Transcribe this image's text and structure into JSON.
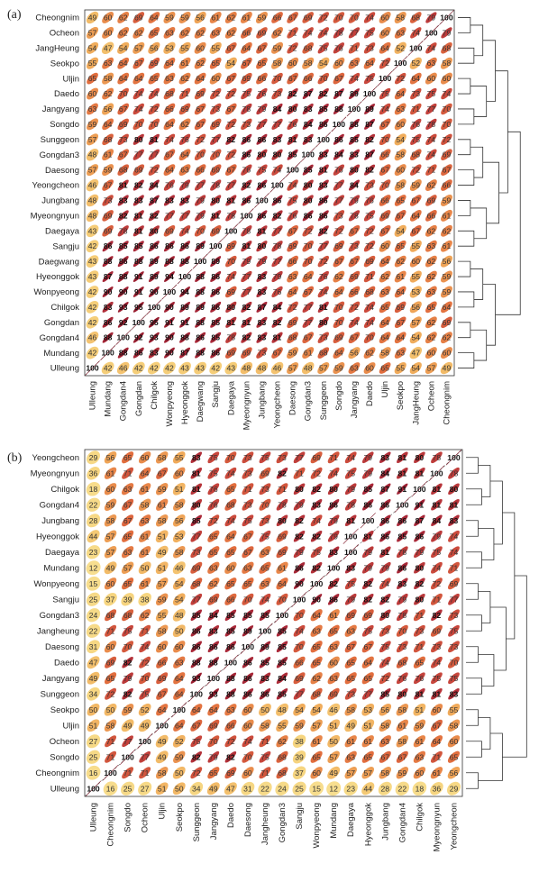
{
  "chart_data": [
    {
      "type": "heatmap",
      "panel_label": "(a)",
      "rows_top_to_bottom": [
        "Cheongnim",
        "Ocheon",
        "JangHeung",
        "Seokpo",
        "Uljin",
        "Daedo",
        "Jangyang",
        "Songdo",
        "Sunggeon",
        "Gongdan3",
        "Daesong",
        "Yeongcheon",
        "Jungbang",
        "Myeongnyun",
        "Daegaya",
        "Sangju",
        "Daegwang",
        "Hyeonggok",
        "Wonpyeong",
        "Chilgok",
        "Gongdan",
        "Gongdan4",
        "Mundang",
        "Ulleung"
      ],
      "columns_left_to_right": [
        "Ulleung",
        "Mundang",
        "Gongdan4",
        "Gongdan",
        "Chilgok",
        "Wonpyeong",
        "Hyeonggok",
        "Daegwang",
        "Sangju",
        "Daegaya",
        "Myeongnyun",
        "Jungbang",
        "Yeongcheon",
        "Daesong",
        "Gongdan3",
        "Sunggeon",
        "Songdo",
        "Jangyang",
        "Daedo",
        "Uljin",
        "Seokpo",
        "JangHeung",
        "Ocheon",
        "Cheongnim"
      ],
      "values": [
        [
          49,
          60,
          62,
          69,
          64,
          59,
          59,
          56,
          61,
          62,
          61,
          59,
          66,
          67,
          69,
          72,
          70,
          70,
          74,
          60,
          58,
          68,
          79,
          100
        ],
        [
          57,
          60,
          62,
          62,
          65,
          63,
          62,
          62,
          63,
          62,
          66,
          69,
          62,
          71,
          74,
          74,
          78,
          77,
          75,
          60,
          63,
          74,
          100,
          79
        ],
        [
          54,
          47,
          54,
          57,
          56,
          53,
          55,
          60,
          55,
          67,
          64,
          67,
          59,
          72,
          68,
          75,
          76,
          71,
          73,
          64,
          52,
          100,
          74,
          68
        ],
        [
          55,
          63,
          64,
          67,
          69,
          64,
          61,
          62,
          65,
          54,
          67,
          65,
          58,
          60,
          58,
          54,
          60,
          63,
          64,
          72,
          100,
          52,
          63,
          58
        ],
        [
          65,
          58,
          64,
          64,
          65,
          63,
          62,
          64,
          60,
          67,
          69,
          66,
          70,
          67,
          66,
          70,
          67,
          74,
          75,
          100,
          72,
          64,
          60,
          60
        ],
        [
          60,
          62,
          70,
          74,
          74,
          68,
          71,
          69,
          72,
          72,
          75,
          76,
          73,
          82,
          87,
          82,
          87,
          89,
          100,
          75,
          64,
          73,
          75,
          74
        ],
        [
          63,
          56,
          67,
          74,
          72,
          66,
          69,
          67,
          73,
          67,
          78,
          79,
          84,
          80,
          83,
          85,
          88,
          100,
          89,
          74,
          63,
          71,
          77,
          70
        ],
        [
          59,
          64,
          69,
          70,
          70,
          64,
          62,
          67,
          69,
          72,
          73,
          77,
          77,
          76,
          84,
          86,
          100,
          88,
          87,
          67,
          60,
          76,
          78,
          70
        ],
        [
          57,
          68,
          73,
          80,
          81,
          74,
          76,
          72,
          77,
          82,
          86,
          86,
          83,
          81,
          83,
          100,
          86,
          85,
          82,
          70,
          54,
          75,
          74,
          72
        ],
        [
          48,
          61,
          67,
          77,
          77,
          67,
          64,
          70,
          70,
          72,
          86,
          80,
          80,
          85,
          100,
          83,
          84,
          83,
          87,
          66,
          58,
          68,
          74,
          69
        ],
        [
          57,
          59,
          68,
          69,
          72,
          64,
          63,
          66,
          69,
          67,
          76,
          75,
          74,
          100,
          85,
          81,
          76,
          80,
          82,
          67,
          60,
          72,
          71,
          67
        ],
        [
          46,
          67,
          81,
          82,
          84,
          76,
          79,
          77,
          78,
          77,
          82,
          86,
          100,
          74,
          80,
          83,
          77,
          84,
          73,
          70,
          58,
          59,
          62,
          66
        ],
        [
          48,
          73,
          83,
          83,
          87,
          83,
          83,
          79,
          80,
          81,
          86,
          100,
          86,
          75,
          80,
          86,
          77,
          79,
          76,
          66,
          65,
          67,
          69,
          59
        ],
        [
          48,
          69,
          82,
          81,
          82,
          77,
          77,
          79,
          81,
          78,
          100,
          86,
          82,
          76,
          86,
          86,
          73,
          78,
          75,
          69,
          67,
          64,
          66,
          61
        ],
        [
          43,
          69,
          78,
          81,
          80,
          69,
          74,
          70,
          69,
          100,
          78,
          81,
          77,
          67,
          72,
          82,
          72,
          67,
          72,
          67,
          54,
          67,
          62,
          62
        ],
        [
          42,
          86,
          85,
          85,
          86,
          86,
          86,
          89,
          100,
          69,
          81,
          80,
          78,
          69,
          70,
          77,
          69,
          73,
          72,
          60,
          65,
          55,
          63,
          61
        ],
        [
          43,
          88,
          86,
          88,
          89,
          88,
          88,
          100,
          89,
          70,
          79,
          79,
          77,
          66,
          70,
          72,
          67,
          67,
          69,
          64,
          62,
          60,
          62,
          56
        ],
        [
          43,
          87,
          88,
          91,
          89,
          94,
          100,
          88,
          86,
          74,
          77,
          83,
          79,
          63,
          64,
          76,
          62,
          69,
          71,
          62,
          61,
          55,
          62,
          59
        ],
        [
          42,
          90,
          90,
          91,
          90,
          100,
          94,
          88,
          86,
          69,
          77,
          83,
          76,
          64,
          67,
          74,
          64,
          66,
          68,
          63,
          64,
          53,
          63,
          59
        ],
        [
          42,
          83,
          93,
          95,
          100,
          90,
          89,
          89,
          86,
          80,
          82,
          87,
          84,
          72,
          77,
          81,
          70,
          72,
          74,
          65,
          69,
          56,
          65,
          64
        ],
        [
          42,
          86,
          92,
          100,
          95,
          91,
          91,
          88,
          85,
          81,
          81,
          83,
          82,
          69,
          77,
          80,
          70,
          74,
          74,
          64,
          67,
          57,
          62,
          69
        ],
        [
          46,
          88,
          100,
          92,
          93,
          90,
          88,
          86,
          85,
          78,
          82,
          83,
          81,
          68,
          67,
          73,
          69,
          67,
          70,
          64,
          64,
          54,
          62,
          62
        ],
        [
          42,
          100,
          88,
          86,
          83,
          90,
          87,
          88,
          86,
          69,
          69,
          73,
          67,
          59,
          61,
          68,
          64,
          56,
          62,
          58,
          63,
          47,
          60,
          60
        ],
        [
          100,
          42,
          46,
          42,
          42,
          42,
          43,
          43,
          42,
          43,
          48,
          48,
          46,
          57,
          48,
          57,
          59,
          63,
          60,
          65,
          55,
          54,
          57,
          49
        ]
      ]
    },
    {
      "type": "heatmap",
      "panel_label": "(b)",
      "rows_top_to_bottom": [
        "Yeongcheon",
        "Myeongnyun",
        "Chilgok",
        "Gongdan4",
        "Jungbang",
        "Hyeonggok",
        "Daegaya",
        "Mundang",
        "Wonpyeong",
        "Sangju",
        "Gongdan3",
        "Jangheung",
        "Daesong",
        "Daedo",
        "Jangyang",
        "Sunggeon",
        "Seokpo",
        "Uljin",
        "Ocheon",
        "Songdo",
        "Cheongnim",
        "Ulleung"
      ],
      "columns_left_to_right": [
        "Ulleung",
        "Cheongnim",
        "Songdo",
        "Ocheon",
        "Uljin",
        "Seokpo",
        "Sunggeon",
        "Jangyang",
        "Daedo",
        "Daesong",
        "Jangheung",
        "Gongdan3",
        "Sangju",
        "Wonpyeong",
        "Mundang",
        "Daegaya",
        "Hyeonggok",
        "Jungbang",
        "Gongdan4",
        "Chilgok",
        "Myeongnyun",
        "Yeongcheon"
      ],
      "values": [
        [
          29,
          56,
          65,
          60,
          58,
          55,
          83,
          75,
          70,
          73,
          75,
          73,
          77,
          69,
          71,
          74,
          79,
          83,
          81,
          80,
          78,
          100
        ],
        [
          36,
          61,
          71,
          64,
          67,
          60,
          81,
          75,
          74,
          73,
          69,
          82,
          71,
          72,
          74,
          75,
          79,
          84,
          81,
          81,
          100,
          78
        ],
        [
          18,
          60,
          63,
          61,
          59,
          51,
          81,
          76,
          65,
          71,
          73,
          71,
          80,
          82,
          80,
          79,
          85,
          87,
          91,
          100,
          81,
          80
        ],
        [
          22,
          59,
          67,
          58,
          61,
          58,
          80,
          76,
          68,
          73,
          70,
          78,
          79,
          83,
          86,
          78,
          86,
          86,
          100,
          91,
          81,
          81
        ],
        [
          28,
          58,
          67,
          63,
          58,
          56,
          85,
          72,
          74,
          75,
          73,
          80,
          82,
          74,
          79,
          81,
          100,
          86,
          86,
          87,
          84,
          83
        ],
        [
          44,
          57,
          65,
          61,
          51,
          53,
          77,
          65,
          64,
          67,
          75,
          69,
          82,
          82,
          79,
          100,
          81,
          86,
          85,
          86,
          79,
          74
        ],
        [
          23,
          57,
          63,
          61,
          49,
          58,
          73,
          65,
          65,
          67,
          63,
          69,
          79,
          75,
          83,
          100,
          79,
          81,
          78,
          79,
          75,
          74
        ],
        [
          12,
          49,
          57,
          50,
          51,
          46,
          69,
          63,
          60,
          63,
          65,
          61,
          86,
          82,
          100,
          83,
          79,
          79,
          86,
          80,
          74,
          71
        ],
        [
          15,
          60,
          65,
          61,
          57,
          54,
          68,
          62,
          65,
          65,
          63,
          64,
          90,
          100,
          82,
          75,
          82,
          74,
          83,
          82,
          72,
          69
        ],
        [
          25,
          37,
          39,
          38,
          59,
          54,
          77,
          69,
          66,
          70,
          74,
          70,
          100,
          90,
          86,
          79,
          82,
          82,
          79,
          80,
          71,
          77
        ],
        [
          24,
          68,
          68,
          62,
          55,
          48,
          85,
          84,
          85,
          85,
          85,
          100,
          70,
          64,
          61,
          69,
          69,
          80,
          78,
          71,
          82,
          73
        ],
        [
          22,
          71,
          75,
          71,
          58,
          50,
          86,
          83,
          85,
          89,
          100,
          85,
          74,
          63,
          65,
          63,
          75,
          73,
          70,
          73,
          69,
          75
        ],
        [
          31,
          60,
          70,
          74,
          60,
          60,
          86,
          86,
          86,
          100,
          89,
          85,
          70,
          65,
          63,
          67,
          67,
          75,
          73,
          71,
          73,
          73
        ],
        [
          47,
          69,
          82,
          72,
          66,
          63,
          88,
          88,
          100,
          86,
          85,
          85,
          66,
          65,
          60,
          65,
          64,
          74,
          68,
          65,
          74,
          70
        ],
        [
          49,
          65,
          79,
          70,
          69,
          64,
          93,
          100,
          88,
          86,
          83,
          84,
          69,
          62,
          63,
          65,
          65,
          72,
          76,
          76,
          75,
          75
        ],
        [
          34,
          72,
          82,
          75,
          67,
          64,
          100,
          93,
          88,
          86,
          86,
          85,
          77,
          68,
          69,
          73,
          77,
          85,
          80,
          81,
          81,
          83
        ],
        [
          50,
          50,
          59,
          52,
          64,
          100,
          64,
          64,
          63,
          60,
          50,
          48,
          54,
          54,
          46,
          58,
          53,
          56,
          58,
          51,
          60,
          55
        ],
        [
          51,
          58,
          49,
          49,
          100,
          64,
          67,
          69,
          66,
          60,
          58,
          55,
          59,
          57,
          51,
          49,
          51,
          58,
          61,
          59,
          67,
          58
        ],
        [
          27,
          71,
          77,
          100,
          49,
          52,
          75,
          70,
          72,
          74,
          71,
          62,
          38,
          61,
          50,
          61,
          61,
          63,
          58,
          61,
          64,
          60
        ],
        [
          25,
          71,
          100,
          77,
          49,
          59,
          82,
          79,
          82,
          70,
          75,
          68,
          39,
          65,
          57,
          63,
          65,
          67,
          67,
          63,
          71,
          65
        ],
        [
          16,
          100,
          71,
          71,
          58,
          50,
          72,
          65,
          69,
          60,
          71,
          68,
          37,
          60,
          49,
          57,
          57,
          58,
          59,
          60,
          61,
          56
        ],
        [
          100,
          16,
          25,
          27,
          51,
          50,
          34,
          49,
          47,
          31,
          22,
          24,
          25,
          15,
          12,
          23,
          44,
          28,
          22,
          18,
          36,
          29
        ]
      ]
    }
  ]
}
